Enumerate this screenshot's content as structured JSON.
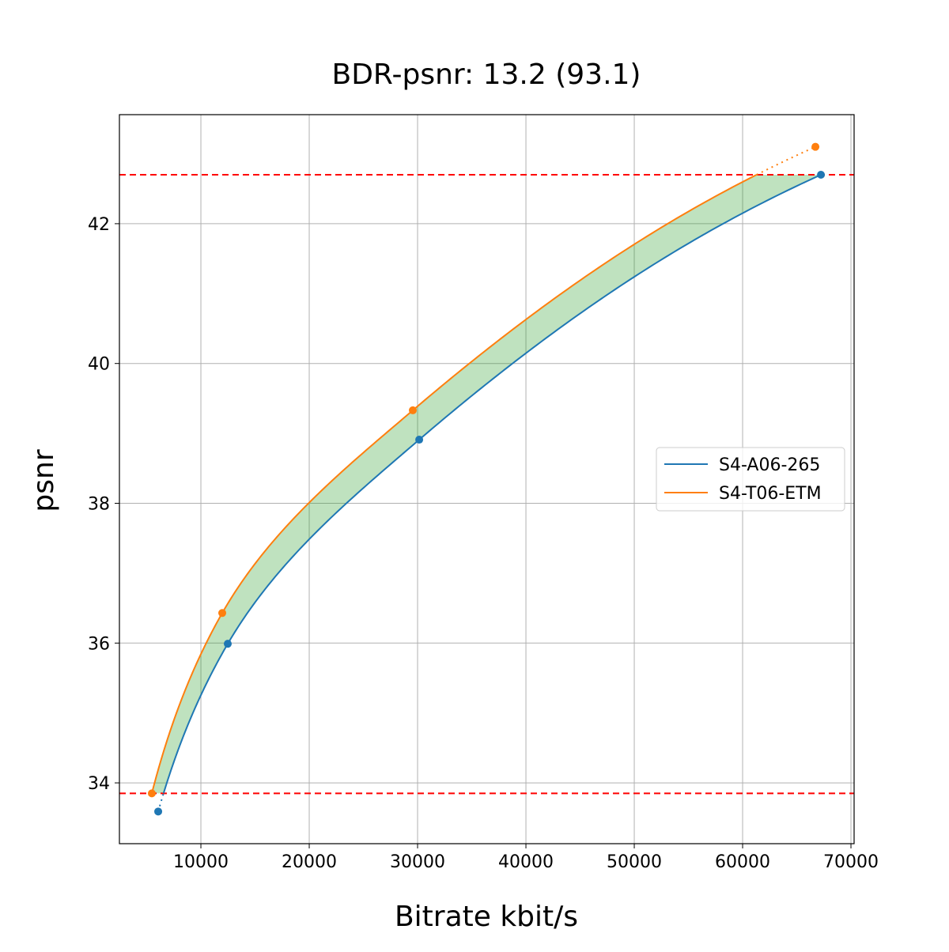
{
  "chart_data": {
    "type": "line",
    "title": "BDR-psnr: 13.2 (93.1)",
    "xlabel": "Bitrate kbit/s",
    "ylabel": "psnr",
    "xlim": [
      2480,
      70290
    ],
    "ylim": [
      33.13,
      43.56
    ],
    "xticks": [
      10000,
      20000,
      30000,
      40000,
      50000,
      60000,
      70000
    ],
    "yticks": [
      34,
      36,
      38,
      40,
      42
    ],
    "grid": true,
    "legend_placement": "center-right",
    "series": [
      {
        "name": "S4-A06-265",
        "color": "#1f77b4",
        "x": [
          6060,
          12480,
          30150,
          67230
        ],
        "y": [
          33.59,
          35.99,
          38.91,
          42.7
        ]
      },
      {
        "name": "S4-T06-ETM",
        "color": "#ff7f0e",
        "x": [
          5470,
          11970,
          29560,
          66720
        ],
        "y": [
          33.85,
          36.43,
          39.33,
          43.1
        ]
      }
    ],
    "reference_lines": {
      "y": [
        33.85,
        42.7
      ],
      "color": "#ff0000",
      "style": "dashed"
    },
    "fill_between": {
      "color": "#2ca02c",
      "range": [
        33.85,
        42.7
      ]
    }
  }
}
